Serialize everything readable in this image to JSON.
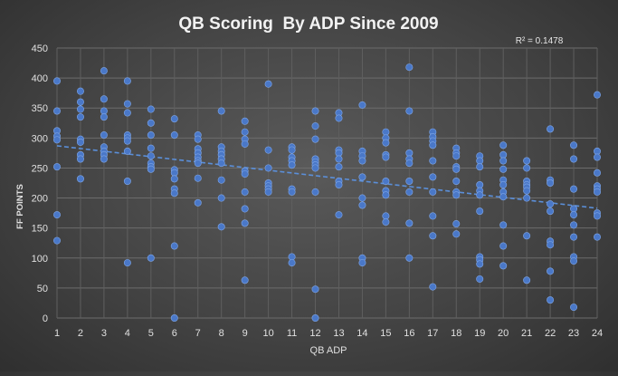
{
  "chart_data": {
    "type": "scatter",
    "title": "QB Scoring  By ADP Since 2009",
    "xlabel": "QB ADP",
    "ylabel": "FF POINTS",
    "annotation": "R² = 0.1478",
    "xlim": [
      1,
      24
    ],
    "ylim": [
      0,
      450
    ],
    "xticks": [
      1,
      2,
      3,
      4,
      5,
      6,
      7,
      8,
      9,
      10,
      11,
      12,
      13,
      14,
      15,
      16,
      17,
      18,
      19,
      20,
      21,
      22,
      23,
      24
    ],
    "yticks": [
      0,
      50,
      100,
      150,
      200,
      250,
      300,
      350,
      400,
      450
    ],
    "grid": true,
    "legend": "none",
    "colors": {
      "point": "#4a78c8",
      "trendline": "#5b8fd9"
    },
    "trendline": {
      "style": "dashed",
      "y_at_xmin": 287,
      "y_at_xmax": 183
    },
    "points": [
      [
        1,
        395
      ],
      [
        1,
        345
      ],
      [
        1,
        312
      ],
      [
        1,
        303
      ],
      [
        1,
        297
      ],
      [
        1,
        252
      ],
      [
        1,
        172
      ],
      [
        1,
        129
      ],
      [
        2,
        378
      ],
      [
        2,
        360
      ],
      [
        2,
        348
      ],
      [
        2,
        335
      ],
      [
        2,
        298
      ],
      [
        2,
        293
      ],
      [
        2,
        272
      ],
      [
        2,
        265
      ],
      [
        2,
        232
      ],
      [
        3,
        412
      ],
      [
        3,
        365
      ],
      [
        3,
        345
      ],
      [
        3,
        335
      ],
      [
        3,
        305
      ],
      [
        3,
        285
      ],
      [
        3,
        278
      ],
      [
        3,
        272
      ],
      [
        3,
        265
      ],
      [
        4,
        395
      ],
      [
        4,
        357
      ],
      [
        4,
        342
      ],
      [
        4,
        305
      ],
      [
        4,
        300
      ],
      [
        4,
        295
      ],
      [
        4,
        278
      ],
      [
        4,
        228
      ],
      [
        4,
        92
      ],
      [
        5,
        348
      ],
      [
        5,
        325
      ],
      [
        5,
        305
      ],
      [
        5,
        283
      ],
      [
        5,
        270
      ],
      [
        5,
        258
      ],
      [
        5,
        252
      ],
      [
        5,
        248
      ],
      [
        5,
        100
      ],
      [
        6,
        332
      ],
      [
        6,
        305
      ],
      [
        6,
        247
      ],
      [
        6,
        242
      ],
      [
        6,
        232
      ],
      [
        6,
        215
      ],
      [
        6,
        208
      ],
      [
        6,
        120
      ],
      [
        6,
        0
      ],
      [
        7,
        305
      ],
      [
        7,
        298
      ],
      [
        7,
        282
      ],
      [
        7,
        275
      ],
      [
        7,
        268
      ],
      [
        7,
        262
      ],
      [
        7,
        258
      ],
      [
        7,
        233
      ],
      [
        7,
        192
      ],
      [
        8,
        345
      ],
      [
        8,
        285
      ],
      [
        8,
        278
      ],
      [
        8,
        272
      ],
      [
        8,
        265
      ],
      [
        8,
        258
      ],
      [
        8,
        230
      ],
      [
        8,
        200
      ],
      [
        8,
        152
      ],
      [
        9,
        328
      ],
      [
        9,
        310
      ],
      [
        9,
        298
      ],
      [
        9,
        290
      ],
      [
        9,
        245
      ],
      [
        9,
        240
      ],
      [
        9,
        210
      ],
      [
        9,
        182
      ],
      [
        9,
        158
      ],
      [
        9,
        63
      ],
      [
        10,
        390
      ],
      [
        10,
        280
      ],
      [
        10,
        250
      ],
      [
        10,
        225
      ],
      [
        10,
        220
      ],
      [
        10,
        215
      ],
      [
        10,
        210
      ],
      [
        11,
        285
      ],
      [
        11,
        280
      ],
      [
        11,
        268
      ],
      [
        11,
        262
      ],
      [
        11,
        255
      ],
      [
        11,
        215
      ],
      [
        11,
        210
      ],
      [
        11,
        102
      ],
      [
        11,
        92
      ],
      [
        12,
        345
      ],
      [
        12,
        320
      ],
      [
        12,
        298
      ],
      [
        12,
        265
      ],
      [
        12,
        260
      ],
      [
        12,
        255
      ],
      [
        12,
        250
      ],
      [
        12,
        210
      ],
      [
        12,
        48
      ],
      [
        12,
        0
      ],
      [
        13,
        342
      ],
      [
        13,
        333
      ],
      [
        13,
        280
      ],
      [
        13,
        275
      ],
      [
        13,
        265
      ],
      [
        13,
        252
      ],
      [
        13,
        228
      ],
      [
        13,
        222
      ],
      [
        13,
        172
      ],
      [
        14,
        355
      ],
      [
        14,
        278
      ],
      [
        14,
        270
      ],
      [
        14,
        262
      ],
      [
        14,
        235
      ],
      [
        14,
        200
      ],
      [
        14,
        188
      ],
      [
        14,
        100
      ],
      [
        14,
        92
      ],
      [
        15,
        310
      ],
      [
        15,
        300
      ],
      [
        15,
        292
      ],
      [
        15,
        272
      ],
      [
        15,
        268
      ],
      [
        15,
        228
      ],
      [
        15,
        212
      ],
      [
        15,
        205
      ],
      [
        15,
        170
      ],
      [
        15,
        160
      ],
      [
        16,
        418
      ],
      [
        16,
        345
      ],
      [
        16,
        275
      ],
      [
        16,
        265
      ],
      [
        16,
        258
      ],
      [
        16,
        228
      ],
      [
        16,
        210
      ],
      [
        16,
        158
      ],
      [
        16,
        100
      ],
      [
        17,
        310
      ],
      [
        17,
        302
      ],
      [
        17,
        295
      ],
      [
        17,
        288
      ],
      [
        17,
        262
      ],
      [
        17,
        235
      ],
      [
        17,
        210
      ],
      [
        17,
        170
      ],
      [
        17,
        137
      ],
      [
        17,
        52
      ],
      [
        18,
        283
      ],
      [
        18,
        275
      ],
      [
        18,
        270
      ],
      [
        18,
        252
      ],
      [
        18,
        248
      ],
      [
        18,
        228
      ],
      [
        18,
        210
      ],
      [
        18,
        205
      ],
      [
        18,
        157
      ],
      [
        18,
        140
      ],
      [
        19,
        270
      ],
      [
        19,
        262
      ],
      [
        19,
        252
      ],
      [
        19,
        222
      ],
      [
        19,
        212
      ],
      [
        19,
        205
      ],
      [
        19,
        178
      ],
      [
        19,
        102
      ],
      [
        19,
        97
      ],
      [
        19,
        90
      ],
      [
        19,
        65
      ],
      [
        20,
        288
      ],
      [
        20,
        272
      ],
      [
        20,
        262
      ],
      [
        20,
        248
      ],
      [
        20,
        230
      ],
      [
        20,
        222
      ],
      [
        20,
        210
      ],
      [
        20,
        202
      ],
      [
        20,
        155
      ],
      [
        20,
        120
      ],
      [
        20,
        87
      ],
      [
        21,
        262
      ],
      [
        21,
        250
      ],
      [
        21,
        228
      ],
      [
        21,
        222
      ],
      [
        21,
        218
      ],
      [
        21,
        212
      ],
      [
        21,
        200
      ],
      [
        21,
        137
      ],
      [
        21,
        63
      ],
      [
        22,
        315
      ],
      [
        22,
        230
      ],
      [
        22,
        225
      ],
      [
        22,
        190
      ],
      [
        22,
        178
      ],
      [
        22,
        128
      ],
      [
        22,
        122
      ],
      [
        22,
        78
      ],
      [
        22,
        30
      ],
      [
        23,
        288
      ],
      [
        23,
        265
      ],
      [
        23,
        215
      ],
      [
        23,
        182
      ],
      [
        23,
        172
      ],
      [
        23,
        155
      ],
      [
        23,
        135
      ],
      [
        23,
        102
      ],
      [
        23,
        95
      ],
      [
        23,
        18
      ],
      [
        24,
        372
      ],
      [
        24,
        278
      ],
      [
        24,
        268
      ],
      [
        24,
        242
      ],
      [
        24,
        220
      ],
      [
        24,
        215
      ],
      [
        24,
        210
      ],
      [
        24,
        175
      ],
      [
        24,
        170
      ],
      [
        24,
        135
      ]
    ]
  }
}
